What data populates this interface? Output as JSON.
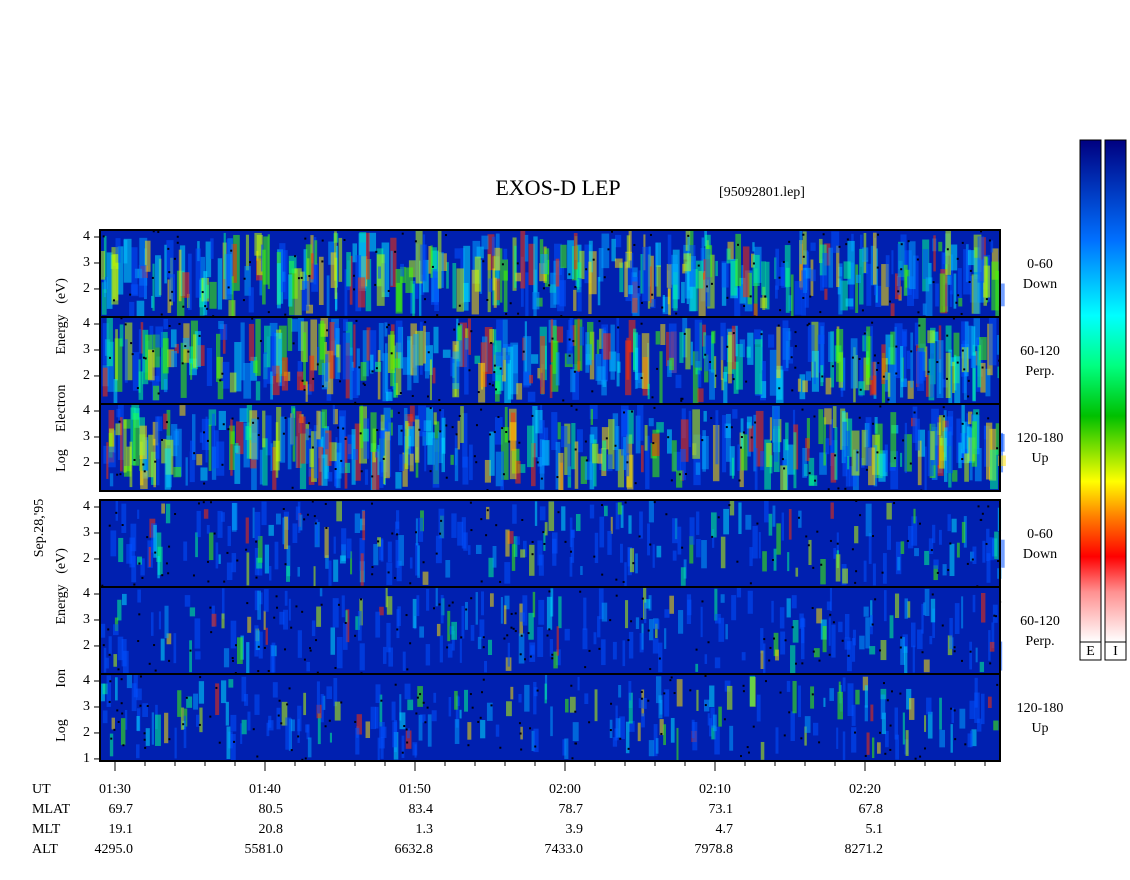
{
  "chart_data": {
    "type": "spectrogram",
    "title": "EXOS-D LEP",
    "subtitle": "[95092801.lep]",
    "date_label": "Sep.28,'95",
    "xlim": [
      "01:29",
      "02:29"
    ],
    "xticks": [
      "01:30",
      "01:40",
      "01:50",
      "02:00",
      "02:10",
      "02:20"
    ],
    "groups": [
      {
        "ylabel_words": [
          "Log",
          "Electron",
          "Energy",
          "(eV)"
        ],
        "panels": [
          {
            "label": [
              "0-60",
              "Down"
            ],
            "ylim": [
              0.92,
              4.27
            ],
            "yticks": [
              2,
              3,
              4
            ]
          },
          {
            "label": [
              "60-120",
              "Perp."
            ],
            "ylim": [
              0.92,
              4.27
            ],
            "yticks": [
              2,
              3,
              4
            ]
          },
          {
            "label": [
              "120-180",
              "Up"
            ],
            "ylim": [
              0.92,
              4.27
            ],
            "yticks": [
              2,
              3,
              4
            ]
          }
        ]
      },
      {
        "ylabel_words": [
          "Log",
          "Ion",
          "Energy",
          "(eV)"
        ],
        "panels": [
          {
            "label": [
              "0-60",
              "Down"
            ],
            "ylim": [
              0.92,
              4.27
            ],
            "yticks": [
              2,
              3,
              4
            ]
          },
          {
            "label": [
              "60-120",
              "Perp."
            ],
            "ylim": [
              0.92,
              4.27
            ],
            "yticks": [
              2,
              3,
              4
            ]
          },
          {
            "label": [
              "120-180",
              "Up"
            ],
            "ylim": [
              0.92,
              4.27
            ],
            "yticks": [
              1,
              2,
              3,
              4
            ]
          }
        ]
      }
    ],
    "ephemeris": [
      {
        "label": "UT",
        "values": []
      },
      {
        "label": "MLAT",
        "values": [
          "69.7",
          "80.5",
          "83.4",
          "78.7",
          "73.1",
          "67.8"
        ]
      },
      {
        "label": "MLT",
        "values": [
          "19.1",
          "20.8",
          "1.3",
          "3.9",
          "4.7",
          "5.1"
        ]
      },
      {
        "label": "ALT",
        "values": [
          "4295.0",
          "5581.0",
          "6632.8",
          "7433.0",
          "7978.8",
          "8271.2"
        ]
      }
    ],
    "colorbars": [
      "E",
      "I"
    ]
  }
}
